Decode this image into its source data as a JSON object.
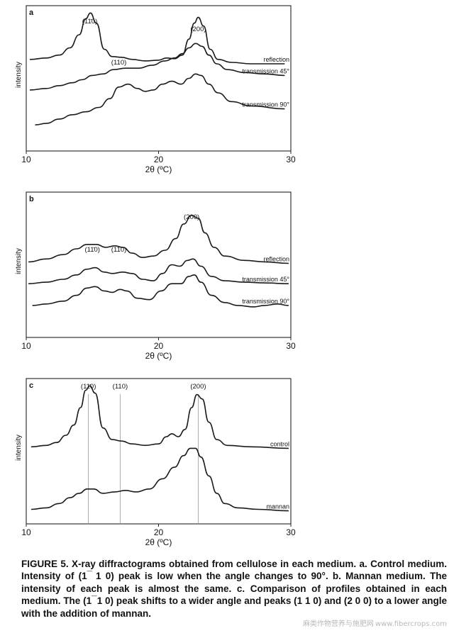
{
  "figure": {
    "caption_label": "FIGURE 5.",
    "caption_text": "X-ray diffractograms obtained from cellulose in each medium. a. Control medium. Intensity of (1 ̅ 1 0) peak is low when the angle changes to 90°. b. Mannan medium. The intensity of each peak is almost the same. c. Comparison of profiles obtained in each medium. The (1 ̅ 1 0) peak shifts to a wider angle and peaks (1 1 0) and (2 0 0) to a lower angle with the addition of mannan."
  },
  "watermark": {
    "cn": "麻类作物营养与施肥网",
    "url": "www.fibercrops.com"
  },
  "chart_data": [
    {
      "panel": "a",
      "type": "line",
      "xlabel": "2θ (ºC)",
      "ylabel": "intensity",
      "xlim": [
        10,
        30
      ],
      "xticks": [
        10,
        20,
        30
      ],
      "peak_labels": [
        {
          "text": "(11̄0)",
          "x": 14.8
        },
        {
          "text": "(110)",
          "x": 17.0
        },
        {
          "text": "(200)",
          "x": 23.0
        }
      ],
      "series": [
        {
          "name": "reflection",
          "points": [
            [
              10.3,
              0.63
            ],
            [
              11.5,
              0.64
            ],
            [
              12.5,
              0.66
            ],
            [
              13.3,
              0.71
            ],
            [
              14.0,
              0.8
            ],
            [
              14.5,
              0.91
            ],
            [
              14.85,
              0.95
            ],
            [
              15.3,
              0.88
            ],
            [
              15.9,
              0.7
            ],
            [
              16.5,
              0.65
            ],
            [
              17.2,
              0.645
            ],
            [
              18.0,
              0.63
            ],
            [
              19.0,
              0.62
            ],
            [
              20.0,
              0.625
            ],
            [
              20.6,
              0.64
            ],
            [
              21.2,
              0.635
            ],
            [
              21.8,
              0.66
            ],
            [
              22.3,
              0.77
            ],
            [
              22.7,
              0.88
            ],
            [
              23.0,
              0.92
            ],
            [
              23.4,
              0.86
            ],
            [
              23.9,
              0.7
            ],
            [
              24.5,
              0.63
            ],
            [
              25.5,
              0.61
            ],
            [
              27,
              0.6
            ],
            [
              29.5,
              0.6
            ]
          ]
        },
        {
          "name": "transmission 45°",
          "points": [
            [
              10.3,
              0.42
            ],
            [
              11.5,
              0.43
            ],
            [
              12.5,
              0.45
            ],
            [
              13.5,
              0.47
            ],
            [
              14.2,
              0.49
            ],
            [
              15.0,
              0.52
            ],
            [
              15.8,
              0.53
            ],
            [
              16.6,
              0.56
            ],
            [
              17.5,
              0.57
            ],
            [
              18.5,
              0.57
            ],
            [
              19.5,
              0.59
            ],
            [
              20.5,
              0.62
            ],
            [
              21.2,
              0.64
            ],
            [
              21.8,
              0.67
            ],
            [
              22.3,
              0.71
            ],
            [
              22.8,
              0.74
            ],
            [
              23.3,
              0.72
            ],
            [
              23.8,
              0.66
            ],
            [
              24.4,
              0.6
            ],
            [
              25.2,
              0.56
            ],
            [
              26.5,
              0.54
            ],
            [
              28,
              0.53
            ],
            [
              29.5,
              0.52
            ]
          ]
        },
        {
          "name": "transmission 90°",
          "points": [
            [
              10.7,
              0.18
            ],
            [
              11.5,
              0.19
            ],
            [
              12.5,
              0.22
            ],
            [
              13.5,
              0.25
            ],
            [
              14.5,
              0.27
            ],
            [
              15.5,
              0.3
            ],
            [
              16.3,
              0.36
            ],
            [
              17.0,
              0.44
            ],
            [
              17.7,
              0.46
            ],
            [
              18.4,
              0.43
            ],
            [
              19.0,
              0.41
            ],
            [
              19.6,
              0.42
            ],
            [
              20.3,
              0.46
            ],
            [
              21.0,
              0.48
            ],
            [
              21.7,
              0.46
            ],
            [
              22.3,
              0.5
            ],
            [
              22.8,
              0.53
            ],
            [
              23.2,
              0.52
            ],
            [
              23.8,
              0.46
            ],
            [
              24.5,
              0.4
            ],
            [
              25.5,
              0.34
            ],
            [
              27,
              0.31
            ],
            [
              29.5,
              0.29
            ]
          ]
        }
      ]
    },
    {
      "panel": "b",
      "type": "line",
      "xlabel": "2θ (ºC)",
      "ylabel": "intensity",
      "xlim": [
        10,
        30
      ],
      "xticks": [
        10,
        20,
        30
      ],
      "peak_labels": [
        {
          "text": "(11̄0)",
          "x": 15.0
        },
        {
          "text": "(110)",
          "x": 17.0
        },
        {
          "text": "(200)",
          "x": 22.5
        }
      ],
      "series": [
        {
          "name": "reflection",
          "points": [
            [
              10.2,
              0.52
            ],
            [
              11.5,
              0.54
            ],
            [
              12.8,
              0.57
            ],
            [
              13.8,
              0.61
            ],
            [
              14.6,
              0.64
            ],
            [
              15.3,
              0.64
            ],
            [
              16.0,
              0.62
            ],
            [
              16.7,
              0.63
            ],
            [
              17.3,
              0.62
            ],
            [
              18.0,
              0.58
            ],
            [
              18.8,
              0.55
            ],
            [
              19.6,
              0.56
            ],
            [
              20.5,
              0.6
            ],
            [
              21.3,
              0.68
            ],
            [
              21.9,
              0.78
            ],
            [
              22.5,
              0.84
            ],
            [
              23.0,
              0.82
            ],
            [
              23.5,
              0.72
            ],
            [
              24.2,
              0.62
            ],
            [
              25.0,
              0.56
            ],
            [
              26.5,
              0.53
            ],
            [
              28,
              0.52
            ],
            [
              29.8,
              0.51
            ]
          ]
        },
        {
          "name": "transmission 45°",
          "points": [
            [
              10.2,
              0.37
            ],
            [
              11.5,
              0.38
            ],
            [
              12.8,
              0.4
            ],
            [
              13.8,
              0.43
            ],
            [
              14.6,
              0.47
            ],
            [
              15.2,
              0.48
            ],
            [
              15.9,
              0.45
            ],
            [
              16.5,
              0.44
            ],
            [
              17.3,
              0.45
            ],
            [
              18.0,
              0.44
            ],
            [
              18.8,
              0.4
            ],
            [
              19.6,
              0.39
            ],
            [
              20.3,
              0.44
            ],
            [
              21.0,
              0.5
            ],
            [
              21.6,
              0.49
            ],
            [
              22.2,
              0.53
            ],
            [
              22.6,
              0.54
            ],
            [
              23.2,
              0.49
            ],
            [
              24.0,
              0.42
            ],
            [
              25.0,
              0.39
            ],
            [
              26.5,
              0.38
            ],
            [
              28,
              0.375
            ],
            [
              29.8,
              0.37
            ]
          ]
        },
        {
          "name": "transmission 90°",
          "points": [
            [
              10.5,
              0.22
            ],
            [
              11.5,
              0.23
            ],
            [
              12.8,
              0.25
            ],
            [
              13.8,
              0.29
            ],
            [
              14.6,
              0.34
            ],
            [
              15.2,
              0.35
            ],
            [
              15.9,
              0.32
            ],
            [
              16.5,
              0.31
            ],
            [
              17.1,
              0.33
            ],
            [
              17.6,
              0.32
            ],
            [
              18.4,
              0.27
            ],
            [
              19.3,
              0.26
            ],
            [
              20.2,
              0.32
            ],
            [
              21.0,
              0.37
            ],
            [
              21.7,
              0.37
            ],
            [
              22.3,
              0.42
            ],
            [
              22.7,
              0.43
            ],
            [
              23.2,
              0.38
            ],
            [
              24.0,
              0.29
            ],
            [
              25.0,
              0.24
            ],
            [
              26.0,
              0.22
            ],
            [
              27.2,
              0.21
            ],
            [
              28.0,
              0.22
            ],
            [
              29.0,
              0.23
            ],
            [
              29.8,
              0.22
            ]
          ]
        }
      ]
    },
    {
      "panel": "c",
      "type": "line",
      "xlabel": "2θ (ºC)",
      "ylabel": "intensity",
      "xlim": [
        10,
        30
      ],
      "xticks": [
        10,
        20,
        30
      ],
      "peak_labels": [
        {
          "text": "(11̄0)",
          "x": 14.7
        },
        {
          "text": "(110)",
          "x": 17.1
        },
        {
          "text": "(200)",
          "x": 23.0
        }
      ],
      "reference_lines_x": [
        14.7,
        17.1,
        23.0
      ],
      "series": [
        {
          "name": "control",
          "points": [
            [
              10.4,
              0.53
            ],
            [
              11.5,
              0.54
            ],
            [
              12.3,
              0.56
            ],
            [
              13.0,
              0.61
            ],
            [
              13.6,
              0.68
            ],
            [
              14.1,
              0.8
            ],
            [
              14.5,
              0.92
            ],
            [
              14.8,
              0.95
            ],
            [
              15.2,
              0.9
            ],
            [
              15.8,
              0.66
            ],
            [
              16.5,
              0.58
            ],
            [
              17.2,
              0.57
            ],
            [
              18.0,
              0.55
            ],
            [
              19.0,
              0.54
            ],
            [
              20.0,
              0.55
            ],
            [
              20.6,
              0.6
            ],
            [
              21.0,
              0.62
            ],
            [
              21.5,
              0.6
            ],
            [
              22.0,
              0.65
            ],
            [
              22.5,
              0.8
            ],
            [
              22.9,
              0.89
            ],
            [
              23.3,
              0.86
            ],
            [
              23.8,
              0.7
            ],
            [
              24.4,
              0.58
            ],
            [
              25.2,
              0.54
            ],
            [
              27,
              0.53
            ],
            [
              29.8,
              0.52
            ]
          ]
        },
        {
          "name": "mannan",
          "points": [
            [
              10.4,
              0.1
            ],
            [
              11.5,
              0.11
            ],
            [
              12.5,
              0.14
            ],
            [
              13.3,
              0.18
            ],
            [
              14.0,
              0.21
            ],
            [
              14.6,
              0.24
            ],
            [
              15.1,
              0.24
            ],
            [
              15.8,
              0.21
            ],
            [
              16.7,
              0.22
            ],
            [
              17.5,
              0.23
            ],
            [
              18.3,
              0.22
            ],
            [
              19.3,
              0.24
            ],
            [
              20.3,
              0.31
            ],
            [
              21.2,
              0.39
            ],
            [
              21.9,
              0.47
            ],
            [
              22.4,
              0.52
            ],
            [
              22.8,
              0.52
            ],
            [
              23.2,
              0.46
            ],
            [
              23.8,
              0.33
            ],
            [
              24.4,
              0.21
            ],
            [
              25.0,
              0.14
            ],
            [
              26.0,
              0.11
            ],
            [
              27.5,
              0.1
            ],
            [
              29.8,
              0.09
            ]
          ]
        }
      ]
    }
  ]
}
